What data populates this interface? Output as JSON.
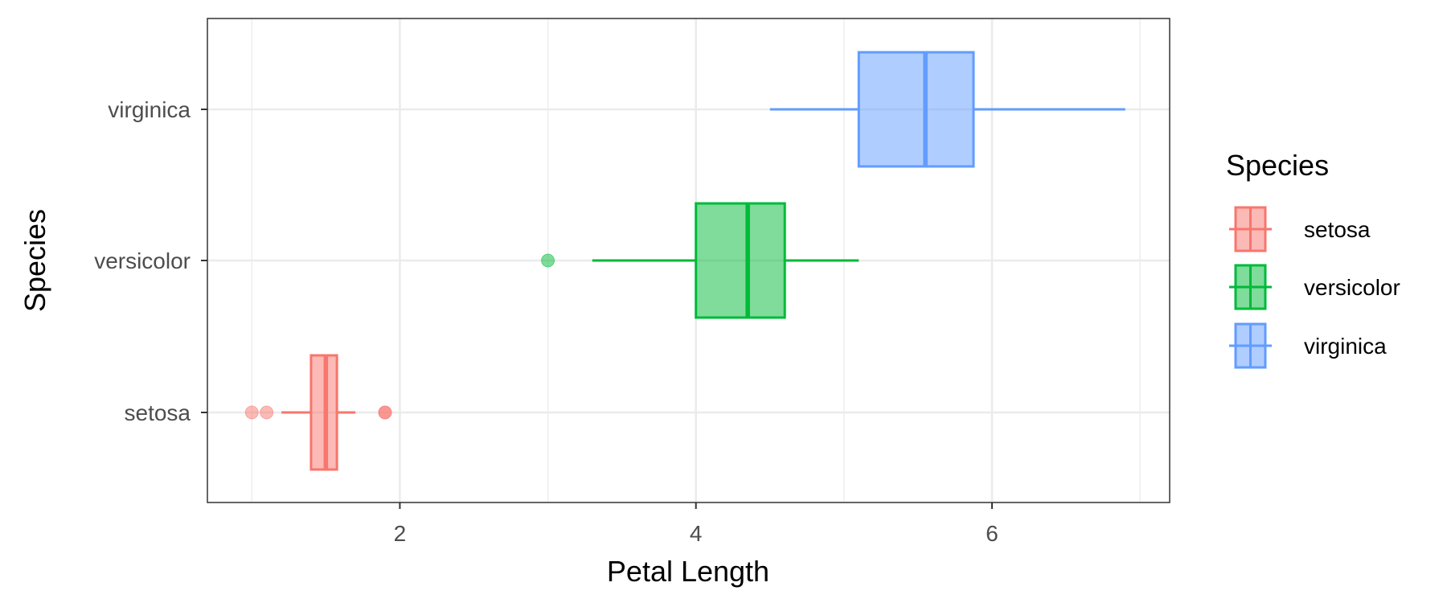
{
  "chart_data": {
    "type": "boxplot",
    "orientation": "horizontal",
    "xlabel": "Petal Length",
    "ylabel": "Species",
    "x_ticks": [
      "2",
      "4",
      "6"
    ],
    "x_tick_values": [
      2,
      4,
      6
    ],
    "xlim": [
      0.7,
      7.2
    ],
    "categories": [
      "setosa",
      "versicolor",
      "virginica"
    ],
    "grid": true,
    "legend": {
      "title": "Species",
      "position": "right"
    },
    "series": [
      {
        "name": "setosa",
        "color": "#F8766D",
        "fill": "#F8766D",
        "min": 1.2,
        "q1": 1.4,
        "median": 1.5,
        "q3": 1.575,
        "max": 1.7,
        "outliers": [
          1.0,
          1.1,
          1.9,
          1.9
        ]
      },
      {
        "name": "versicolor",
        "color": "#00BA38",
        "fill": "#00BA38",
        "min": 3.3,
        "q1": 4.0,
        "median": 4.35,
        "q3": 4.6,
        "max": 5.1,
        "outliers": [
          3.0
        ]
      },
      {
        "name": "virginica",
        "color": "#619CFF",
        "fill": "#619CFF",
        "min": 4.5,
        "q1": 5.1,
        "median": 5.55,
        "q3": 5.875,
        "max": 6.9,
        "outliers": []
      }
    ]
  }
}
